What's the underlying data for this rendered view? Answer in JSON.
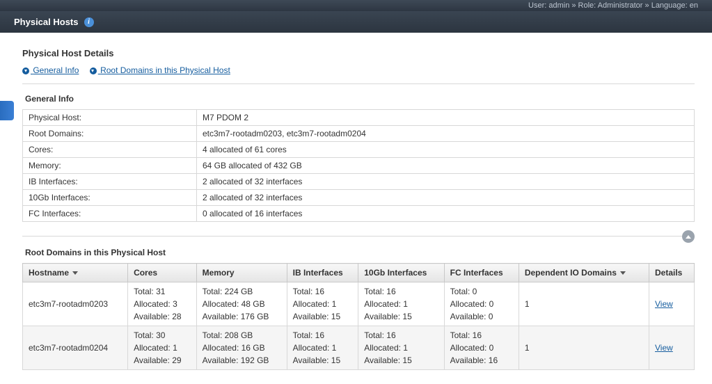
{
  "topbar": "User: admin » Role: Administrator » Language: en",
  "page_header": "Physical Hosts",
  "details_title": "Physical Host Details",
  "anchors": {
    "general_info": "General Info",
    "root_domains": "Root Domains in this Physical Host"
  },
  "general_info": {
    "title": "General Info",
    "rows": [
      {
        "label": "Physical Host:",
        "value": "M7 PDOM 2"
      },
      {
        "label": "Root Domains:",
        "value": "etc3m7-rootadm0203, etc3m7-rootadm0204"
      },
      {
        "label": "Cores:",
        "value": "4 allocated of 61 cores"
      },
      {
        "label": "Memory:",
        "value": "64 GB allocated of 432 GB"
      },
      {
        "label": "IB Interfaces:",
        "value": "2 allocated of 32 interfaces"
      },
      {
        "label": "10Gb Interfaces:",
        "value": "2 allocated of 32 interfaces"
      },
      {
        "label": "FC Interfaces:",
        "value": "0 allocated of 16 interfaces"
      }
    ]
  },
  "root_domains_section": {
    "title": "Root Domains in this Physical Host",
    "columns": [
      "Hostname",
      "Cores",
      "Memory",
      "IB Interfaces",
      "10Gb Interfaces",
      "FC Interfaces",
      "Dependent IO Domains",
      "Details"
    ],
    "rows": [
      {
        "hostname": "etc3m7-rootadm0203",
        "cores": {
          "total": "Total: 31",
          "alloc": "Allocated: 3",
          "avail": "Available: 28"
        },
        "memory": {
          "total": "Total: 224 GB",
          "alloc": "Allocated: 48 GB",
          "avail": "Available: 176 GB"
        },
        "ib": {
          "total": "Total: 16",
          "alloc": "Allocated: 1",
          "avail": "Available: 15"
        },
        "tengb": {
          "total": "Total: 16",
          "alloc": "Allocated: 1",
          "avail": "Available: 15"
        },
        "fc": {
          "total": "Total: 0",
          "alloc": "Allocated: 0",
          "avail": "Available: 0"
        },
        "dep": "1",
        "details": "View"
      },
      {
        "hostname": "etc3m7-rootadm0204",
        "cores": {
          "total": "Total: 30",
          "alloc": "Allocated: 1",
          "avail": "Available: 29"
        },
        "memory": {
          "total": "Total: 208 GB",
          "alloc": "Allocated: 16 GB",
          "avail": "Available: 192 GB"
        },
        "ib": {
          "total": "Total: 16",
          "alloc": "Allocated: 1",
          "avail": "Available: 15"
        },
        "tengb": {
          "total": "Total: 16",
          "alloc": "Allocated: 1",
          "avail": "Available: 15"
        },
        "fc": {
          "total": "Total: 16",
          "alloc": "Allocated: 0",
          "avail": "Available: 16"
        },
        "dep": "1",
        "details": "View"
      }
    ]
  }
}
